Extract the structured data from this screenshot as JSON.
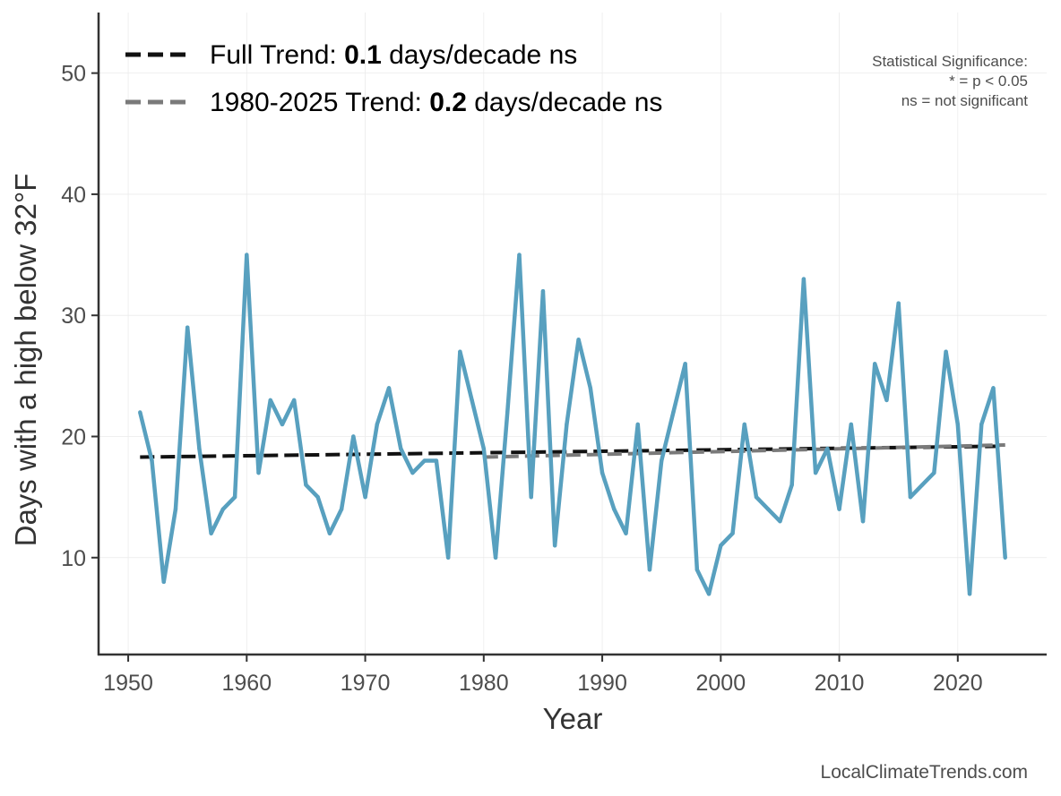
{
  "chart_data": {
    "type": "line",
    "title": "",
    "xlabel": "Year",
    "ylabel": "Days with a high below 32°F",
    "xlim": [
      1947.5,
      2027.5
    ],
    "ylim": [
      2,
      55
    ],
    "x_ticks": [
      1950,
      1960,
      1970,
      1980,
      1990,
      2000,
      2010,
      2020
    ],
    "y_ticks": [
      10,
      20,
      30,
      40,
      50
    ],
    "grid": true,
    "series": [
      {
        "color": "#58a0bf",
        "x": [
          1951,
          1952,
          1953,
          1954,
          1955,
          1956,
          1957,
          1958,
          1959,
          1960,
          1961,
          1962,
          1963,
          1964,
          1965,
          1966,
          1967,
          1968,
          1969,
          1970,
          1971,
          1972,
          1973,
          1974,
          1975,
          1976,
          1977,
          1978,
          1979,
          1980,
          1981,
          1982,
          1983,
          1984,
          1985,
          1986,
          1987,
          1988,
          1989,
          1990,
          1991,
          1992,
          1993,
          1994,
          1995,
          1996,
          1997,
          1998,
          1999,
          2000,
          2001,
          2002,
          2003,
          2004,
          2005,
          2006,
          2007,
          2008,
          2009,
          2010,
          2011,
          2012,
          2013,
          2014,
          2015,
          2016,
          2017,
          2018,
          2019,
          2020,
          2021,
          2022,
          2023,
          2024
        ],
        "y": [
          22,
          18,
          8,
          14,
          29,
          19,
          12,
          14,
          15,
          35,
          17,
          23,
          21,
          23,
          16,
          15,
          12,
          14,
          20,
          15,
          21,
          24,
          19,
          17,
          18,
          18,
          10,
          27,
          23,
          19,
          10,
          22,
          35,
          15,
          32,
          11,
          21,
          28,
          24,
          17,
          14,
          12,
          21,
          9,
          18,
          22,
          26,
          9,
          7,
          11,
          12,
          21,
          15,
          14,
          13,
          16,
          33,
          17,
          19,
          14,
          21,
          13,
          26,
          23,
          31,
          15,
          16,
          17,
          27,
          21,
          7,
          21,
          24,
          10
        ]
      }
    ],
    "trend_lines": [
      {
        "label": "Full Trend: ",
        "value": "0.1",
        "unit": " days/decade ns",
        "color": "#111111",
        "x": [
          1951,
          2024
        ],
        "y": [
          18.3,
          19.2
        ]
      },
      {
        "label": "1980-2025 Trend: ",
        "value": "0.2",
        "unit": " days/decade ns",
        "color": "#7a7a7a",
        "x": [
          1980,
          2024
        ],
        "y": [
          18.3,
          19.3
        ]
      }
    ],
    "legend_position": "top-left",
    "annotations": [
      "Statistical Significance:",
      "* = p < 0.05",
      "ns = not significant"
    ],
    "credit": "LocalClimateTrends.com"
  }
}
